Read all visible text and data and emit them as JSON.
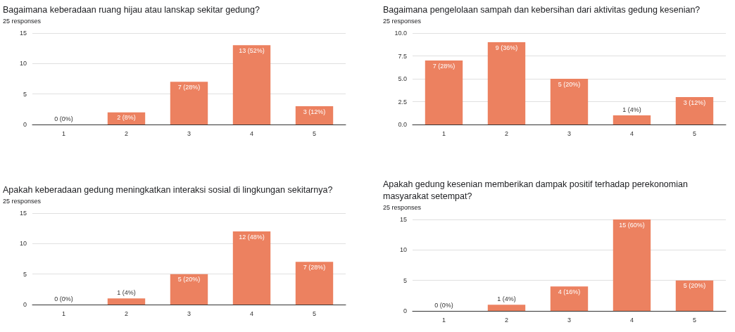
{
  "chart_data": [
    {
      "type": "bar",
      "title": "Bagaimana keberadaan ruang hijau atau lanskap sekitar gedung?",
      "subtitle": "25 responses",
      "categories": [
        "1",
        "2",
        "3",
        "4",
        "5"
      ],
      "values": [
        0,
        2,
        7,
        13,
        3
      ],
      "value_labels": [
        "0 (0%)",
        "2 (8%)",
        "7 (28%)",
        "13 (52%)",
        "3 (12%)"
      ],
      "color": "#ec8160",
      "ylim": [
        0,
        15
      ],
      "yticks": [
        0,
        5,
        10,
        15
      ],
      "grid": "y"
    },
    {
      "type": "bar",
      "title": "Bagaimana pengelolaan sampah dan kebersihan dari aktivitas gedung kesenian?",
      "subtitle": "25 responses",
      "categories": [
        "1",
        "2",
        "3",
        "4",
        "5"
      ],
      "values": [
        7,
        9,
        5,
        1,
        3
      ],
      "value_labels": [
        "7 (28%)",
        "9 (36%)",
        "5 (20%)",
        "1 (4%)",
        "3 (12%)"
      ],
      "color": "#ec8160",
      "ylim": [
        0,
        10
      ],
      "yticks": [
        {
          "value": 0,
          "label": "0.0"
        },
        2.5,
        {
          "value": 5,
          "label": "5.0"
        },
        7.5,
        {
          "value": 10,
          "label": "10.0"
        }
      ],
      "grid": "y"
    },
    {
      "type": "bar",
      "title": "Apakah keberadaan gedung meningkatkan interaksi sosial di lingkungan sekitarnya?",
      "subtitle": "25 responses",
      "categories": [
        "1",
        "2",
        "3",
        "4",
        "5"
      ],
      "values": [
        0,
        1,
        5,
        12,
        7
      ],
      "value_labels": [
        "0 (0%)",
        "1 (4%)",
        "5 (20%)",
        "12 (48%)",
        "7 (28%)"
      ],
      "color": "#ec8160",
      "ylim": [
        0,
        15
      ],
      "yticks": [
        0,
        5,
        10,
        15
      ],
      "grid": "y"
    },
    {
      "type": "bar",
      "title": "Apakah gedung kesenian memberikan dampak positif terhadap perekonomian masyarakat setempat?",
      "subtitle": "25 responses",
      "categories": [
        "1",
        "2",
        "3",
        "4",
        "5"
      ],
      "values": [
        0,
        1,
        4,
        15,
        5
      ],
      "value_labels": [
        "0 (0%)",
        "1 (4%)",
        "4 (16%)",
        "15 (60%)",
        "5 (20%)"
      ],
      "color": "#ec8160",
      "ylim": [
        0,
        15
      ],
      "yticks": [
        0,
        5,
        10,
        15
      ],
      "grid": "y"
    }
  ]
}
